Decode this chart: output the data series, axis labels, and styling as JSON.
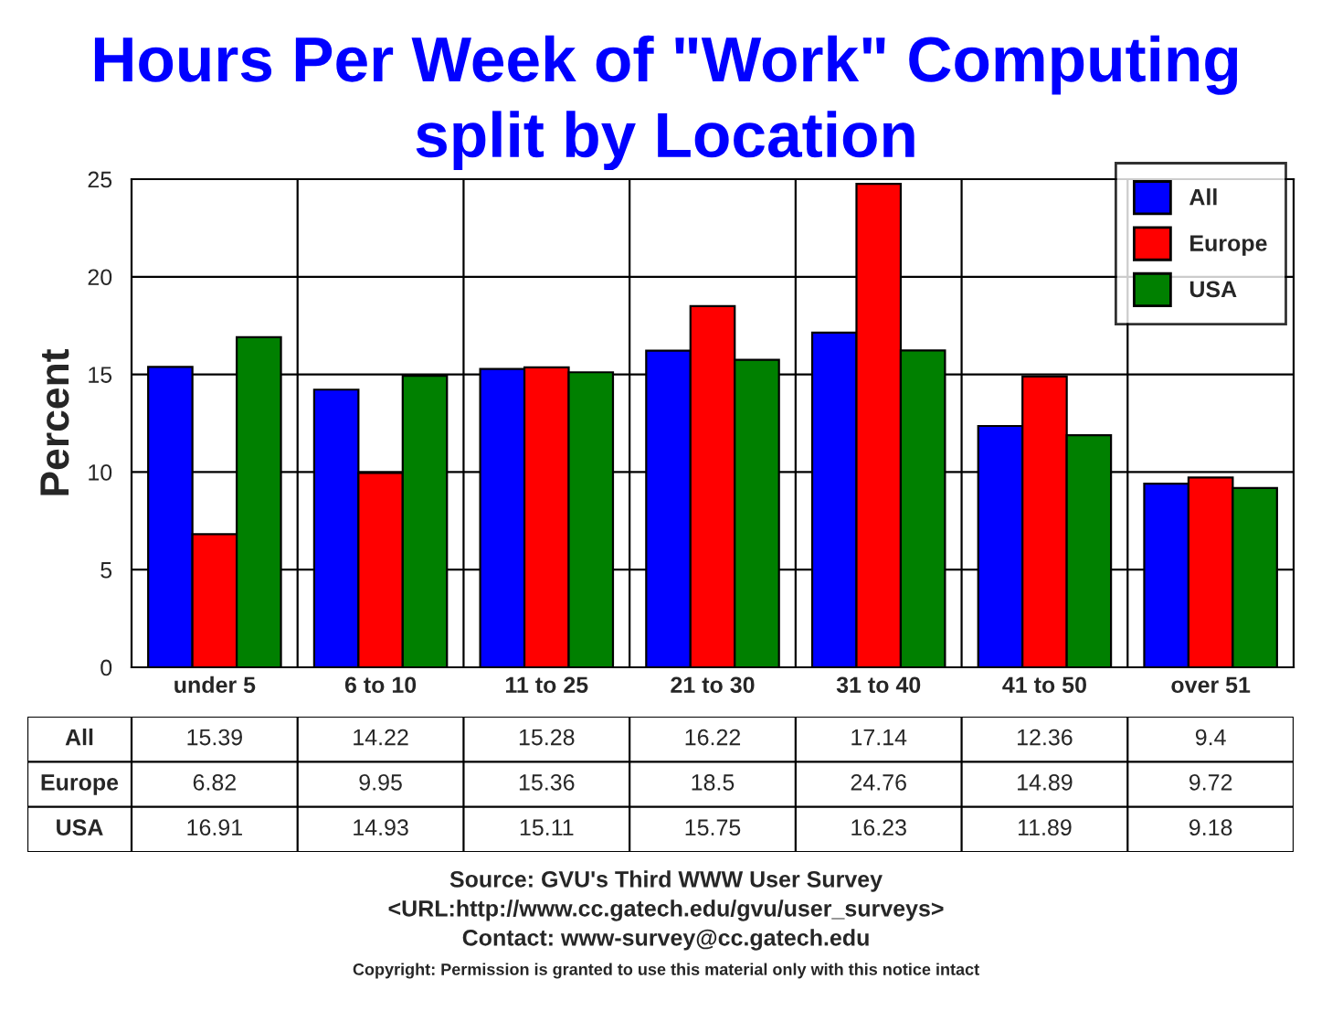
{
  "chart_data": {
    "type": "bar",
    "title": "Hours Per Week of \"Work\" Computing\nsplit by Location",
    "ylabel": "Percent",
    "categories": [
      "under 5",
      "6 to 10",
      "11 to 25",
      "21 to 30",
      "31 to 40",
      "41 to 50",
      "over 51"
    ],
    "series": [
      {
        "name": "All",
        "color": "#0000ff",
        "values": [
          15.39,
          14.22,
          15.28,
          16.22,
          17.14,
          12.36,
          9.4
        ]
      },
      {
        "name": "Europe",
        "color": "#ff0000",
        "values": [
          6.82,
          9.95,
          15.36,
          18.5,
          24.76,
          14.89,
          9.72
        ]
      },
      {
        "name": "USA",
        "color": "#008000",
        "values": [
          16.91,
          14.93,
          15.11,
          15.75,
          16.23,
          11.89,
          9.18
        ]
      }
    ],
    "ylim": [
      0,
      25
    ],
    "yticks": [
      0,
      5,
      10,
      15,
      20,
      25
    ],
    "grid": "y",
    "legend": "top right",
    "data_labels": true,
    "annotations": [
      "Source: GVU's Third WWW User Survey",
      "<URL:http://www.cc.gatech.edu/gvu/user_surveys>",
      "Contact: www-survey@cc.gatech.edu",
      "Copyright: Permission is granted to use this material only with this notice intact"
    ]
  }
}
